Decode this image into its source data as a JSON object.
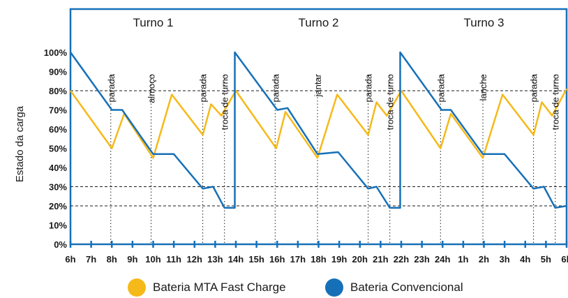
{
  "chart_data": {
    "type": "line",
    "ylabel": "Estado da carga",
    "xlabel": "",
    "x_ticks": [
      "6h",
      "7h",
      "8h",
      "9h",
      "10h",
      "11h",
      "12h",
      "13h",
      "14h",
      "15h",
      "16h",
      "17h",
      "18h",
      "19h",
      "20h",
      "21h",
      "22h",
      "23h",
      "24h",
      "1h",
      "2h",
      "3h",
      "4h",
      "5h",
      "6h"
    ],
    "y_ticks": [
      "0%",
      "10%",
      "20%",
      "30%",
      "40%",
      "50%",
      "60%",
      "70%",
      "80%",
      "90%",
      "100%"
    ],
    "ylim": [
      0,
      100
    ],
    "xlim": [
      0,
      24
    ],
    "shifts": [
      {
        "label": "Turno 1",
        "x": 4
      },
      {
        "label": "Turno 2",
        "x": 12
      },
      {
        "label": "Turno 3",
        "x": 20
      }
    ],
    "events": [
      {
        "label": "parada",
        "x": 1.95
      },
      {
        "label": "almoço",
        "x": 3.9
      },
      {
        "label": "parada",
        "x": 6.4
      },
      {
        "label": "troca de turno",
        "x": 7.45
      },
      {
        "label": "parada",
        "x": 9.9
      },
      {
        "label": "jantar",
        "x": 11.95
      },
      {
        "label": "parada",
        "x": 14.4
      },
      {
        "label": "troca de turno",
        "x": 15.45
      },
      {
        "label": "parada",
        "x": 17.9
      },
      {
        "label": "lanche",
        "x": 19.95
      },
      {
        "label": "parada",
        "x": 22.4
      },
      {
        "label": "troca de turno",
        "x": 23.45
      }
    ],
    "reference_lines": [
      80,
      30,
      20
    ],
    "grid": false,
    "legend_position": "bottom",
    "series": [
      {
        "name": "Bateria MTA Fast Charge",
        "color": "#F5B919",
        "points": [
          [
            0,
            80
          ],
          [
            2,
            50
          ],
          [
            2.6,
            68
          ],
          [
            4,
            45
          ],
          [
            4.9,
            78
          ],
          [
            6.4,
            57
          ],
          [
            6.8,
            73
          ],
          [
            7.3,
            67
          ],
          [
            8,
            80
          ],
          [
            9.95,
            50
          ],
          [
            10.4,
            69
          ],
          [
            11.95,
            45
          ],
          [
            12.9,
            78
          ],
          [
            14.4,
            57
          ],
          [
            14.8,
            74
          ],
          [
            15.3,
            67
          ],
          [
            16,
            80
          ],
          [
            17.9,
            50
          ],
          [
            18.4,
            68
          ],
          [
            19.95,
            45
          ],
          [
            20.9,
            78
          ],
          [
            22.4,
            57
          ],
          [
            22.8,
            74
          ],
          [
            23.3,
            67
          ],
          [
            24,
            81
          ]
        ]
      },
      {
        "name": "Bateria Convencional",
        "color": "#1670B8",
        "points": [
          [
            0,
            100
          ],
          [
            2,
            70
          ],
          [
            2.5,
            70
          ],
          [
            4,
            47
          ],
          [
            5,
            47
          ],
          [
            6.4,
            29
          ],
          [
            6.9,
            30
          ],
          [
            7.45,
            19
          ],
          [
            7.95,
            19
          ],
          [
            7.95,
            100
          ],
          [
            10,
            70
          ],
          [
            10.5,
            71
          ],
          [
            11.95,
            47
          ],
          [
            12.95,
            48
          ],
          [
            14.4,
            29
          ],
          [
            14.8,
            30
          ],
          [
            15.45,
            19
          ],
          [
            15.95,
            19
          ],
          [
            15.95,
            100
          ],
          [
            17.95,
            70
          ],
          [
            18.4,
            70
          ],
          [
            19.95,
            47
          ],
          [
            21,
            47
          ],
          [
            22.4,
            29
          ],
          [
            22.9,
            30
          ],
          [
            23.45,
            19
          ],
          [
            24,
            20
          ]
        ]
      }
    ]
  }
}
